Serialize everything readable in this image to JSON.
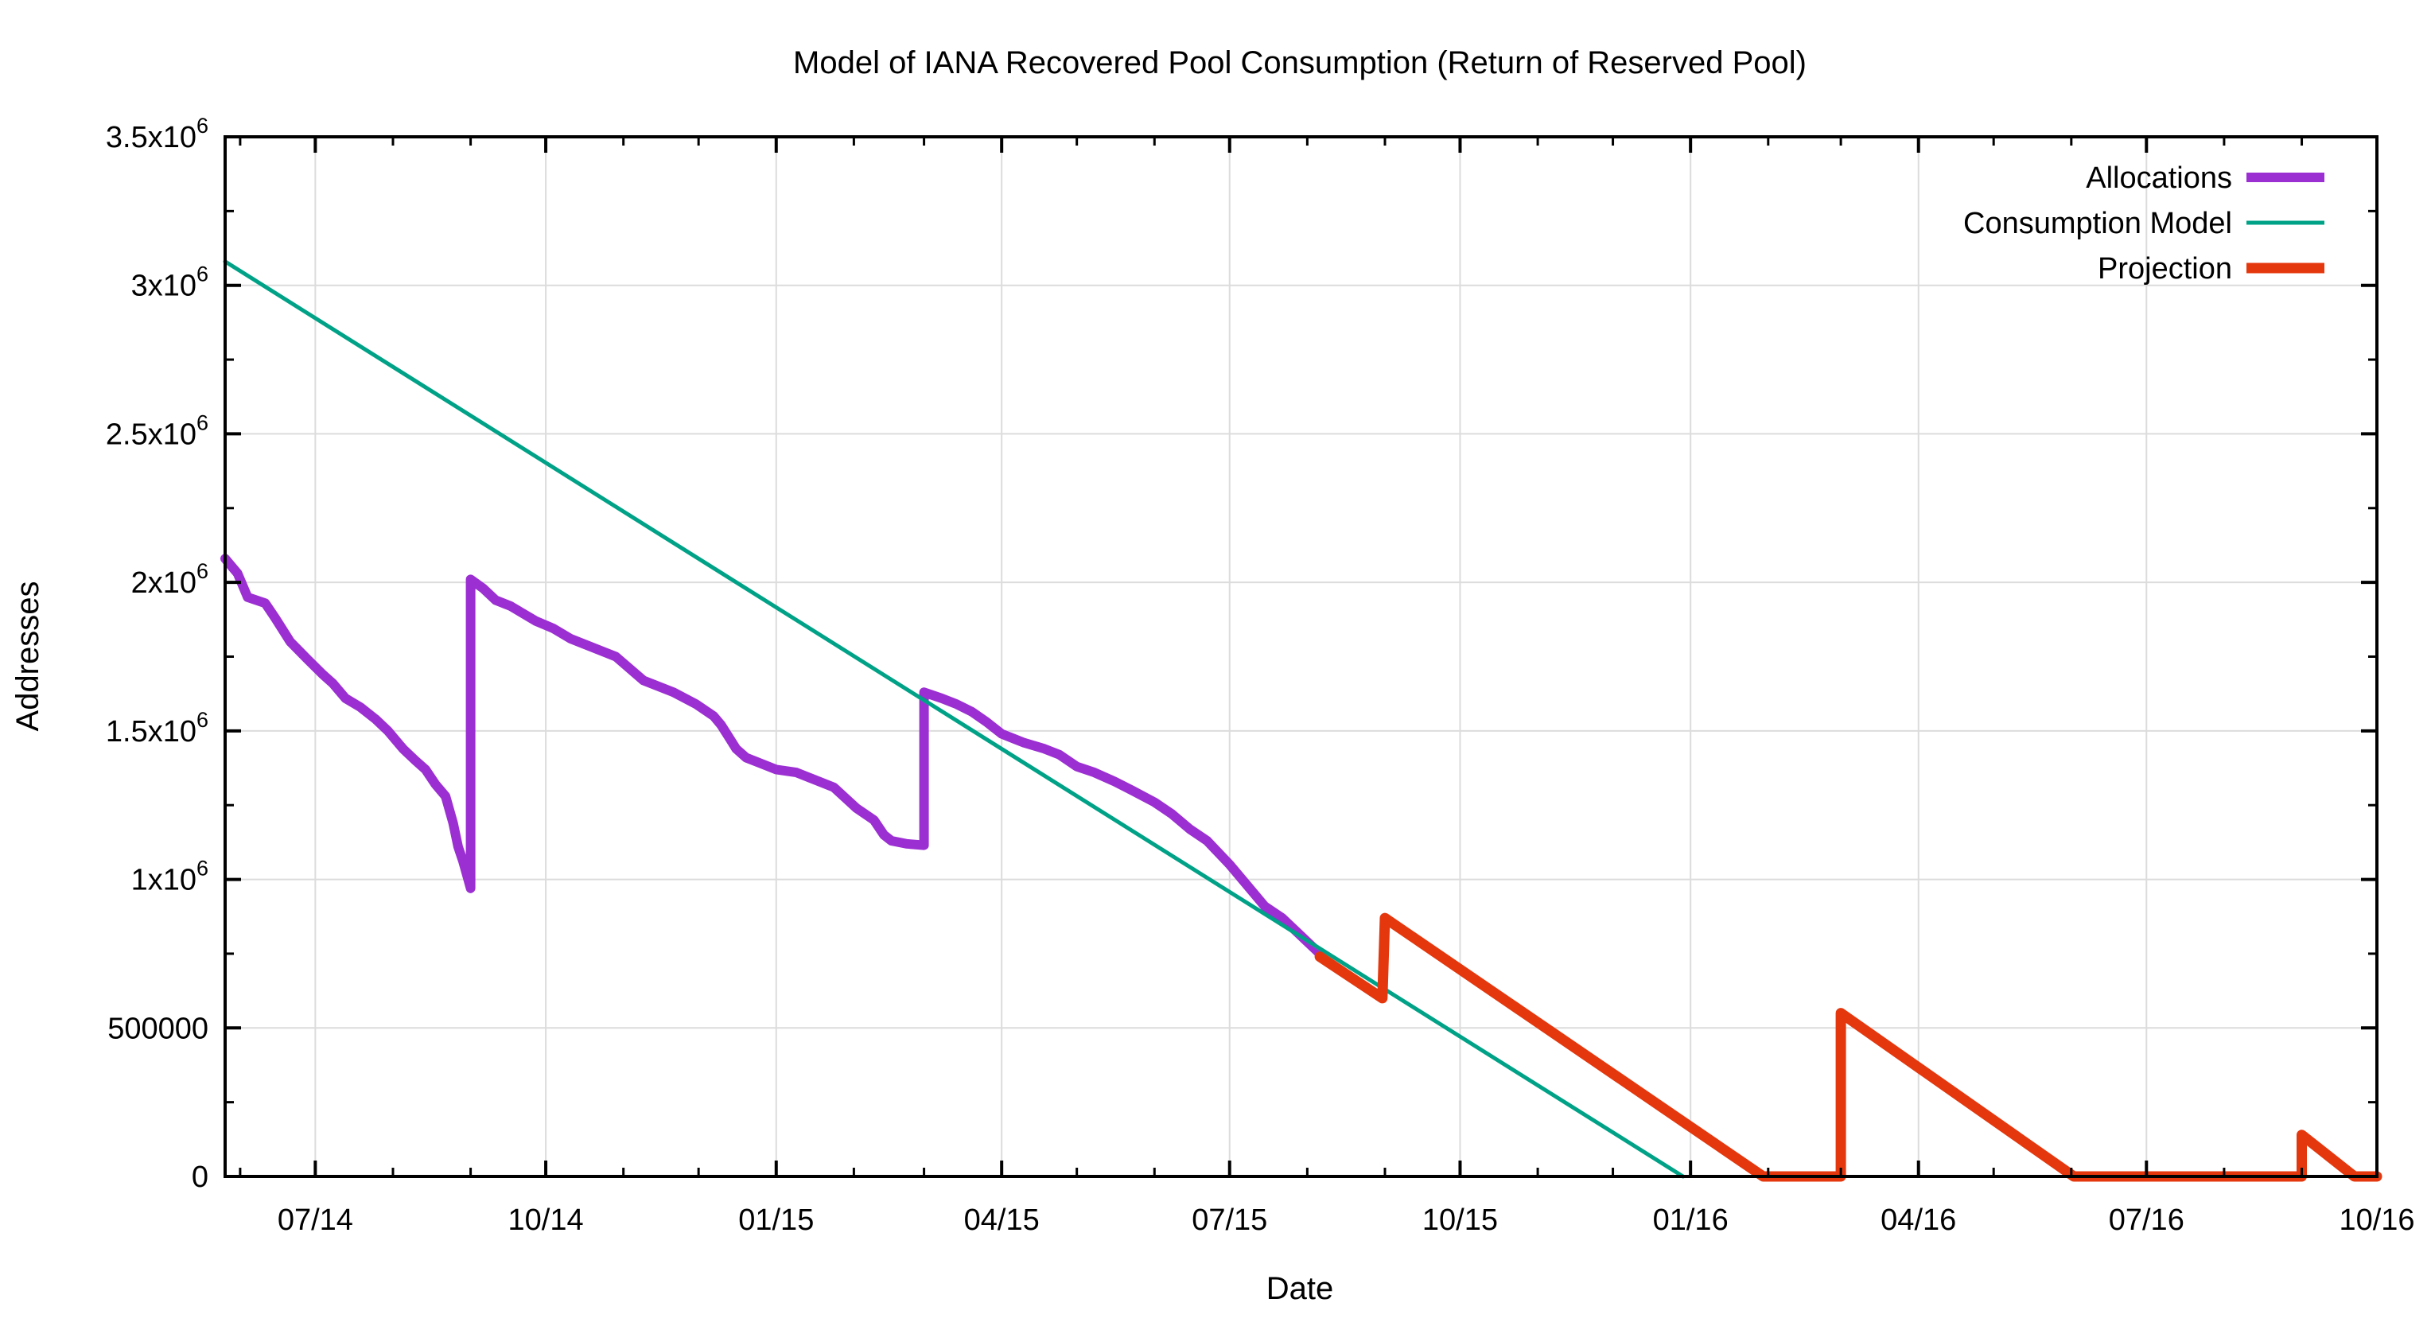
{
  "chart_data": {
    "type": "line",
    "title": "Model of IANA Recovered Pool Consumption (Return of Reserved Pool)",
    "xlabel": "Date",
    "ylabel": "Addresses",
    "x_range": [
      "2014-05-26",
      "2016-10-01"
    ],
    "y_range": [
      0,
      3500000
    ],
    "grid": true,
    "legend_position": "top-right-inside",
    "x_ticks": [
      {
        "date": "2014-07-01",
        "label": "07/14"
      },
      {
        "date": "2014-10-01",
        "label": "10/14"
      },
      {
        "date": "2015-01-01",
        "label": "01/15"
      },
      {
        "date": "2015-04-01",
        "label": "04/15"
      },
      {
        "date": "2015-07-01",
        "label": "07/15"
      },
      {
        "date": "2015-10-01",
        "label": "10/15"
      },
      {
        "date": "2016-01-01",
        "label": "01/16"
      },
      {
        "date": "2016-04-01",
        "label": "04/16"
      },
      {
        "date": "2016-07-01",
        "label": "07/16"
      },
      {
        "date": "2016-10-01",
        "label": "10/16"
      }
    ],
    "x_minor_tick_interval": "monthly",
    "y_ticks": [
      {
        "value": 0,
        "label": "0"
      },
      {
        "value": 500000,
        "label": "500000"
      },
      {
        "value": 1000000,
        "label": "1x10^6"
      },
      {
        "value": 1500000,
        "label": "1.5x10^6"
      },
      {
        "value": 2000000,
        "label": "2x10^6"
      },
      {
        "value": 2500000,
        "label": "2.5x10^6"
      },
      {
        "value": 3000000,
        "label": "3x10^6"
      },
      {
        "value": 3500000,
        "label": "3.5x10^6"
      }
    ],
    "y_minor_step": 250000,
    "colors": {
      "background": "#ffffff",
      "frame": "#000000",
      "grid": "#dcdcdc",
      "text": "#000000"
    },
    "series": [
      {
        "name": "Allocations",
        "color": "#9C2FD2",
        "width": 12,
        "points": [
          [
            "2014-05-26",
            2080000
          ],
          [
            "2014-05-31",
            2030000
          ],
          [
            "2014-06-04",
            1950000
          ],
          [
            "2014-06-11",
            1930000
          ],
          [
            "2014-06-15",
            1880000
          ],
          [
            "2014-06-21",
            1800000
          ],
          [
            "2014-06-28",
            1740000
          ],
          [
            "2014-07-04",
            1690000
          ],
          [
            "2014-07-08",
            1660000
          ],
          [
            "2014-07-13",
            1610000
          ],
          [
            "2014-07-19",
            1580000
          ],
          [
            "2014-07-25",
            1540000
          ],
          [
            "2014-07-30",
            1500000
          ],
          [
            "2014-08-05",
            1440000
          ],
          [
            "2014-08-10",
            1400000
          ],
          [
            "2014-08-14",
            1370000
          ],
          [
            "2014-08-18",
            1320000
          ],
          [
            "2014-08-22",
            1280000
          ],
          [
            "2014-08-25",
            1190000
          ],
          [
            "2014-08-27",
            1110000
          ],
          [
            "2014-08-29",
            1060000
          ],
          [
            "2014-08-31",
            1000000
          ],
          [
            "2014-09-01",
            970000
          ],
          [
            "2014-09-01",
            2010000
          ],
          [
            "2014-09-06",
            1980000
          ],
          [
            "2014-09-11",
            1940000
          ],
          [
            "2014-09-17",
            1920000
          ],
          [
            "2014-09-21",
            1900000
          ],
          [
            "2014-09-27",
            1870000
          ],
          [
            "2014-10-04",
            1845000
          ],
          [
            "2014-10-11",
            1810000
          ],
          [
            "2014-10-17",
            1790000
          ],
          [
            "2014-10-29",
            1750000
          ],
          [
            "2014-11-09",
            1670000
          ],
          [
            "2014-11-21",
            1630000
          ],
          [
            "2014-11-30",
            1590000
          ],
          [
            "2014-12-07",
            1550000
          ],
          [
            "2014-12-10",
            1520000
          ],
          [
            "2014-12-13",
            1480000
          ],
          [
            "2014-12-16",
            1440000
          ],
          [
            "2014-12-20",
            1410000
          ],
          [
            "2014-12-26",
            1390000
          ],
          [
            "2015-01-01",
            1370000
          ],
          [
            "2015-01-09",
            1360000
          ],
          [
            "2015-01-15",
            1340000
          ],
          [
            "2015-01-24",
            1310000
          ],
          [
            "2015-02-02",
            1240000
          ],
          [
            "2015-02-09",
            1200000
          ],
          [
            "2015-02-13",
            1150000
          ],
          [
            "2015-02-16",
            1130000
          ],
          [
            "2015-02-22",
            1120000
          ],
          [
            "2015-03-01",
            1115000
          ],
          [
            "2015-03-01",
            1630000
          ],
          [
            "2015-03-08",
            1610000
          ],
          [
            "2015-03-14",
            1590000
          ],
          [
            "2015-03-20",
            1565000
          ],
          [
            "2015-03-26",
            1530000
          ],
          [
            "2015-04-01",
            1490000
          ],
          [
            "2015-04-10",
            1460000
          ],
          [
            "2015-04-18",
            1440000
          ],
          [
            "2015-04-24",
            1420000
          ],
          [
            "2015-05-01",
            1380000
          ],
          [
            "2015-05-08",
            1360000
          ],
          [
            "2015-05-16",
            1330000
          ],
          [
            "2015-05-23",
            1300000
          ],
          [
            "2015-06-01",
            1260000
          ],
          [
            "2015-06-08",
            1220000
          ],
          [
            "2015-06-15",
            1170000
          ],
          [
            "2015-06-22",
            1130000
          ],
          [
            "2015-07-01",
            1050000
          ],
          [
            "2015-07-08",
            980000
          ],
          [
            "2015-07-15",
            910000
          ],
          [
            "2015-07-22",
            870000
          ],
          [
            "2015-08-01",
            790000
          ],
          [
            "2015-08-06",
            750000
          ]
        ]
      },
      {
        "name": "Consumption Model",
        "color": "#00A287",
        "width": 5,
        "points": [
          [
            "2014-05-26",
            3080000
          ],
          [
            "2015-12-29",
            0
          ]
        ]
      },
      {
        "name": "Projection",
        "color": "#E5370D",
        "width": 13,
        "points": [
          [
            "2015-08-06",
            740000
          ],
          [
            "2015-08-31",
            600000
          ],
          [
            "2015-09-01",
            870000
          ],
          [
            "2016-01-30",
            0
          ],
          [
            "2016-03-01",
            0
          ],
          [
            "2016-03-01",
            550000
          ],
          [
            "2016-06-02",
            0
          ],
          [
            "2016-09-01",
            0
          ],
          [
            "2016-09-01",
            140000
          ],
          [
            "2016-09-22",
            0
          ],
          [
            "2016-10-01",
            0
          ]
        ]
      }
    ]
  }
}
